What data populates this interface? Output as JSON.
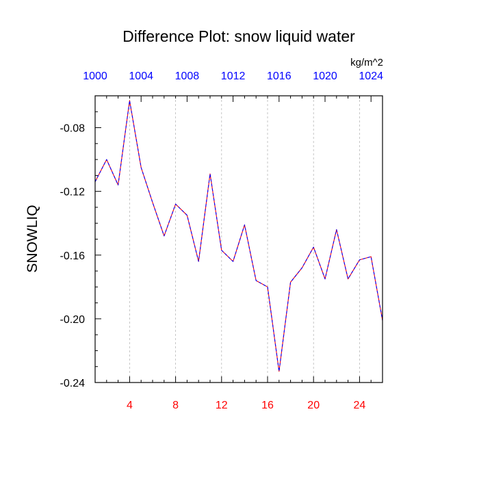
{
  "chart_data": {
    "type": "line",
    "title": "Difference Plot: snow liquid water",
    "units": "kg/m^2",
    "ylabel": "SNOWLIQ",
    "xlabel": "",
    "xlim": [
      1,
      26
    ],
    "ylim": [
      -0.24,
      -0.06
    ],
    "x_ticks": [
      4,
      8,
      12,
      16,
      20,
      24
    ],
    "y_ticks": [
      -0.24,
      -0.2,
      -0.16,
      -0.12,
      -0.08
    ],
    "y_tick_labels": [
      "-0.24",
      "-0.20",
      "-0.16",
      "-0.12",
      "-0.08"
    ],
    "top_axis": {
      "ticks_bottom_equiv": [
        1,
        5,
        9,
        13,
        17,
        21,
        25
      ],
      "labels": [
        "1000",
        "1004",
        "1008",
        "1012",
        "1016",
        "1020",
        "1024"
      ],
      "color": "#0000ff"
    },
    "bottom_tick_color": "#ff0000",
    "grid": "vertical-dashed",
    "series": [
      {
        "color_a": "#ff0000",
        "color_b": "#0000ff",
        "x": [
          1,
          2,
          3,
          4,
          5,
          6,
          7,
          8,
          9,
          10,
          11,
          12,
          13,
          14,
          15,
          16,
          17,
          18,
          19,
          20,
          21,
          22,
          23,
          24,
          25,
          26
        ],
        "values": [
          -0.114,
          -0.1,
          -0.116,
          -0.063,
          -0.105,
          -0.127,
          -0.148,
          -0.128,
          -0.135,
          -0.164,
          -0.109,
          -0.157,
          -0.164,
          -0.141,
          -0.176,
          -0.18,
          -0.233,
          -0.177,
          -0.168,
          -0.155,
          -0.175,
          -0.144,
          -0.175,
          -0.163,
          -0.161,
          -0.201
        ]
      }
    ]
  }
}
